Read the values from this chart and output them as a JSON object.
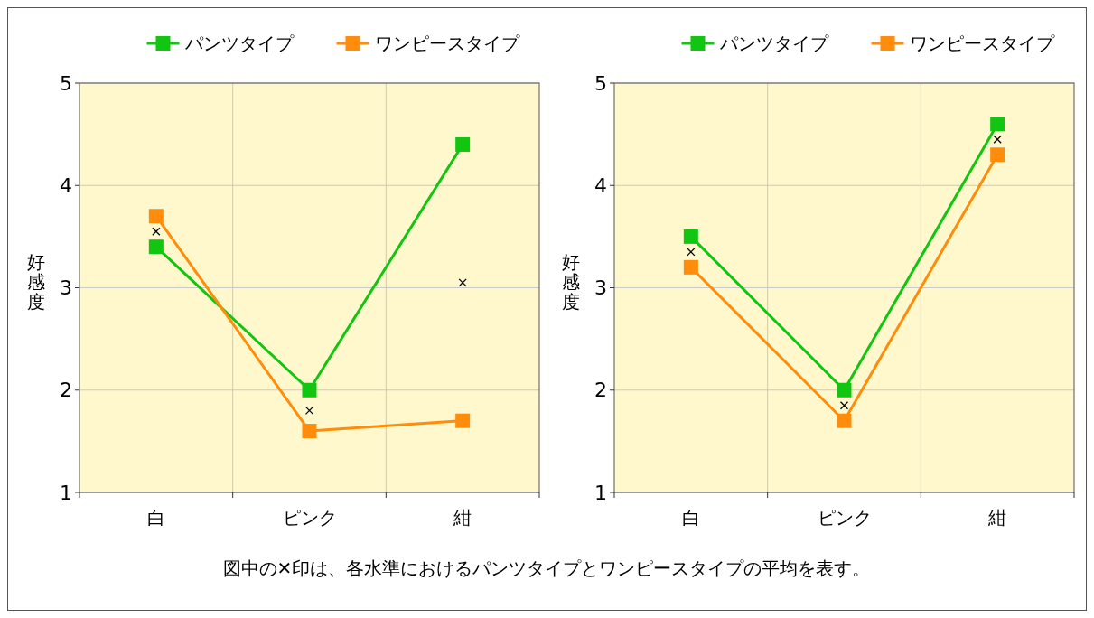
{
  "chart_data": [
    {
      "type": "line",
      "categories": [
        "白",
        "ピンク",
        "紺"
      ],
      "ylabel": "好感度",
      "ylim": [
        1,
        5
      ],
      "yticks": [
        1,
        2,
        3,
        4,
        5
      ],
      "grid": true,
      "legend": "top",
      "marker": "square",
      "line_style": "solid",
      "series": [
        {
          "name": "パンツタイプ",
          "color": "#11c511",
          "values": [
            3.4,
            2.0,
            4.4
          ]
        },
        {
          "name": "ワンピースタイプ",
          "color": "#ff8c0a",
          "values": [
            3.7,
            1.6,
            1.7
          ]
        },
        {
          "type": "scatter",
          "marker": "cross",
          "color": "#000000",
          "x": [
            "白",
            "ピンク",
            "紺"
          ],
          "values": [
            3.55,
            1.8,
            3.05
          ]
        }
      ],
      "annotations": [
        "図中の✕印は、各水準におけるパンツタイプとワンピースタイプの平均を表す。"
      ]
    },
    {
      "type": "line",
      "categories": [
        "白",
        "ピンク",
        "紺"
      ],
      "ylabel": "好感度",
      "ylim": [
        1,
        5
      ],
      "yticks": [
        1,
        2,
        3,
        4,
        5
      ],
      "grid": true,
      "legend": "top",
      "marker": "square",
      "line_style": "solid",
      "series": [
        {
          "name": "パンツタイプ",
          "color": "#11c511",
          "values": [
            3.5,
            2.0,
            4.6
          ]
        },
        {
          "name": "ワンピースタイプ",
          "color": "#ff8c0a",
          "values": [
            3.2,
            1.7,
            4.3
          ]
        },
        {
          "type": "scatter",
          "marker": "cross",
          "color": "#000000",
          "x": [
            "白",
            "ピンク",
            "紺"
          ],
          "values": [
            3.35,
            1.85,
            4.45
          ]
        }
      ]
    }
  ]
}
